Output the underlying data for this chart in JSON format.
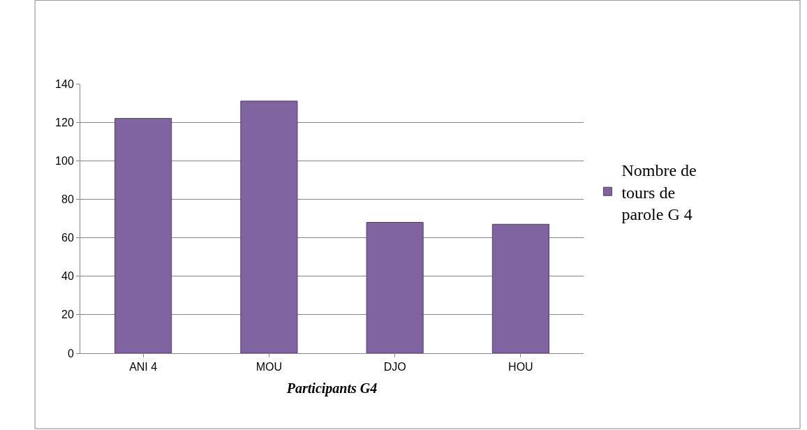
{
  "chart_data": {
    "type": "bar",
    "xlabel": "Participants G4",
    "categories": [
      "ANI 4",
      "MOU",
      "DJO",
      "HOU"
    ],
    "series": [
      {
        "name": "Nombre de tours de parole G 4",
        "color": "#8064a2",
        "values": [
          122,
          131,
          68,
          67
        ]
      }
    ],
    "ylim": [
      0,
      140
    ],
    "yticks": [
      0,
      20,
      40,
      60,
      80,
      100,
      120,
      140
    ],
    "grid": "y",
    "legend": "right"
  }
}
